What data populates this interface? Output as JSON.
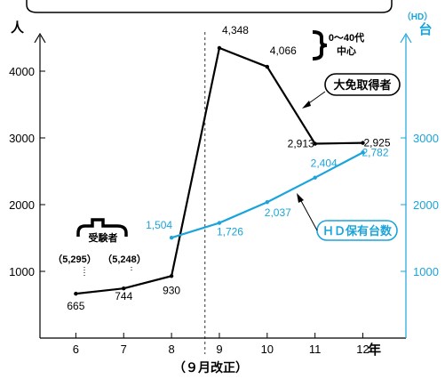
{
  "chart_data": {
    "type": "line",
    "x": [
      "6",
      "7",
      "8",
      "9",
      "10",
      "11",
      "12"
    ],
    "x_unit": "年",
    "xlim": [
      5.25,
      12.9
    ],
    "y_left_unit": "人",
    "y_left_ticks": [
      "1000",
      "2000",
      "3000",
      "4000"
    ],
    "ylim_left": [
      0,
      4800
    ],
    "y_right_unit_top": "（HD）",
    "y_right_unit": "台",
    "y_right_ticks": [
      "1000",
      "2000",
      "3000"
    ],
    "ylim_right": [
      0,
      4800
    ],
    "series": [
      {
        "name": "大免取得者",
        "color": "#000000",
        "axis": "left",
        "x": [
          6,
          7,
          8,
          9,
          10,
          11,
          12
        ],
        "values": [
          665,
          744,
          930,
          4348,
          4066,
          2913,
          2925
        ],
        "labels": [
          "665",
          "744",
          "930",
          "4,348",
          "4,066",
          "2,913",
          "2,925"
        ]
      },
      {
        "name": "ＨＤ保有台数",
        "color": "#1aa4dc",
        "axis": "right",
        "x": [
          8,
          9,
          10,
          11,
          12
        ],
        "values": [
          1504,
          1726,
          2037,
          2404,
          2782
        ],
        "labels": [
          "1,504",
          "1,726",
          "2,037",
          "2,404",
          "2,782"
        ]
      }
    ],
    "annotations": {
      "reform_line_x": 8.7,
      "reform_label": "（９月改正）",
      "age_note_line1": "0～40代",
      "age_note_line2": "中心",
      "bracket_values": [
        "（5,295）",
        "（5,248）"
      ],
      "partial_label": "受験者"
    }
  }
}
